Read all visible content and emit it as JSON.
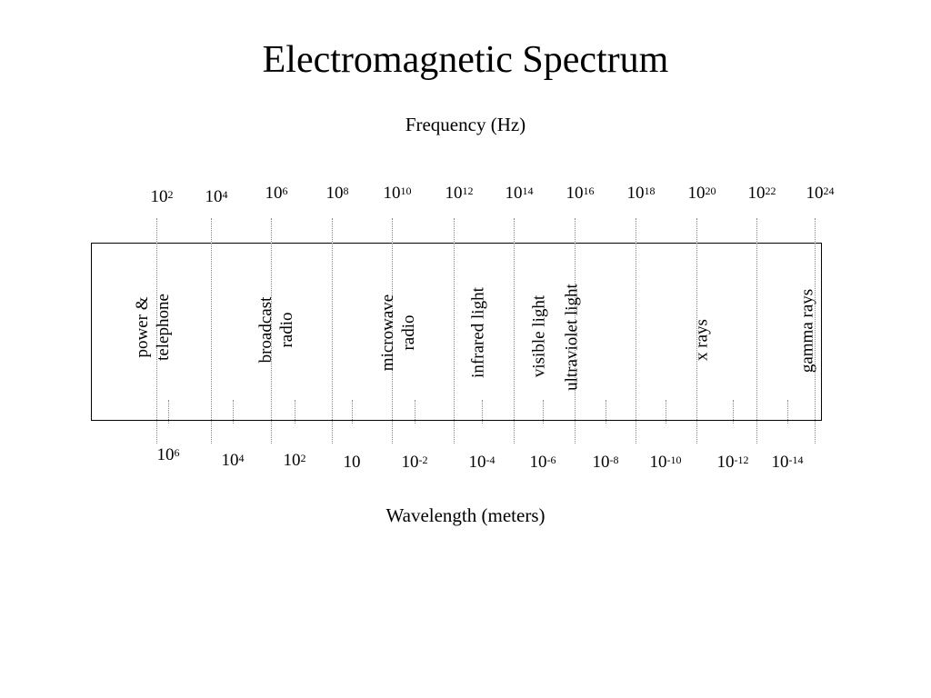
{
  "title": "Electromagnetic Spectrum",
  "frequency_label": "Frequency (Hz)",
  "wavelength_label": "Wavelength (meters)",
  "frequency_ticks": [
    {
      "base": "10",
      "exp": "2"
    },
    {
      "base": "10",
      "exp": "4"
    },
    {
      "base": "10",
      "exp": "6"
    },
    {
      "base": "10",
      "exp": "8"
    },
    {
      "base": "10",
      "exp": "10"
    },
    {
      "base": "10",
      "exp": "12"
    },
    {
      "base": "10",
      "exp": "14"
    },
    {
      "base": "10",
      "exp": "16"
    },
    {
      "base": "10",
      "exp": "18"
    },
    {
      "base": "10",
      "exp": "20"
    },
    {
      "base": "10",
      "exp": "22"
    },
    {
      "base": "10",
      "exp": "24"
    }
  ],
  "wavelength_ticks": [
    {
      "base": "10",
      "exp": "6"
    },
    {
      "base": "10",
      "exp": "4"
    },
    {
      "base": "10",
      "exp": "2"
    },
    {
      "base": "10",
      "exp": ""
    },
    {
      "base": "10",
      "exp": "-2"
    },
    {
      "base": "10",
      "exp": "-4"
    },
    {
      "base": "10",
      "exp": "-6"
    },
    {
      "base": "10",
      "exp": "-8"
    },
    {
      "base": "10",
      "exp": "-10"
    },
    {
      "base": "10",
      "exp": "-12"
    },
    {
      "base": "10",
      "exp": "-14"
    }
  ],
  "bands": [
    {
      "lines": [
        "power &",
        "telephone"
      ]
    },
    {
      "lines": [
        "broadcast",
        "radio"
      ]
    },
    {
      "lines": [
        "microwave",
        "radio"
      ]
    },
    {
      "lines": [
        "infrared light"
      ]
    },
    {
      "lines": [
        "visible light"
      ]
    },
    {
      "lines": [
        "ultraviolet light"
      ]
    },
    {
      "lines": [
        "x rays"
      ]
    },
    {
      "lines": [
        "gamma rays"
      ]
    }
  ]
}
